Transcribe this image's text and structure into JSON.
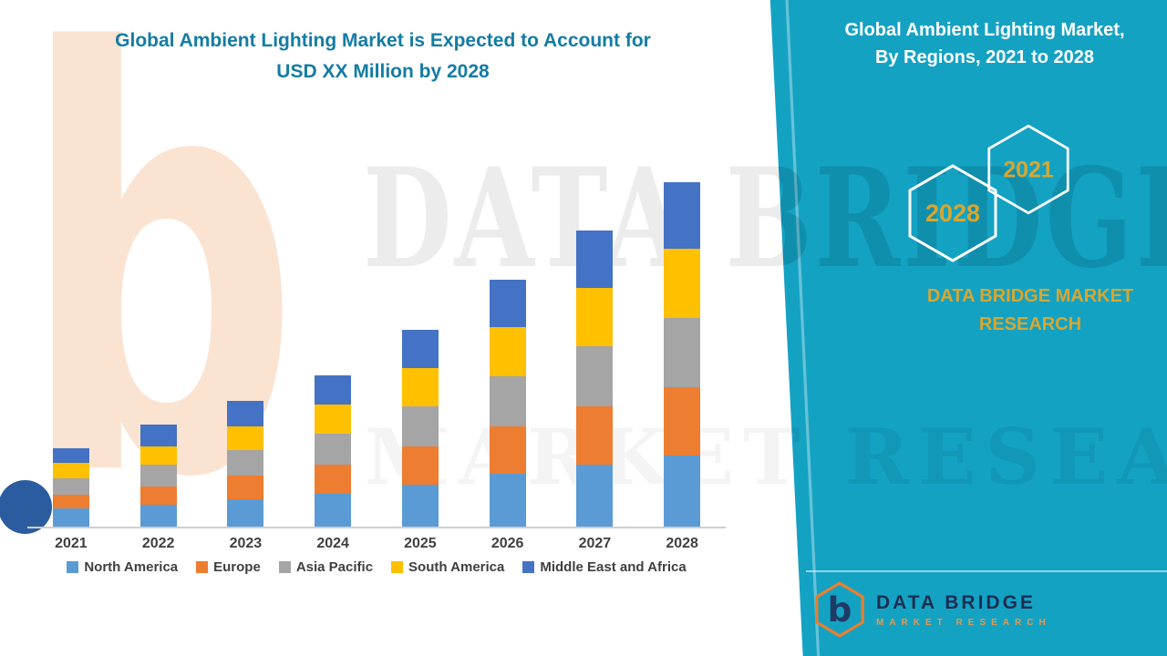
{
  "header": {
    "title_line1": "Global Ambient Lighting Market is Expected to Account for",
    "title_line2": "USD XX Million by 2028"
  },
  "side_panel": {
    "heading_line1": "Global Ambient Lighting Market,",
    "heading_line2": "By Regions, 2021 to 2028",
    "badge_2028": "2028",
    "badge_2021": "2021",
    "brand_line1": "DATA BRIDGE MARKET",
    "brand_line2": "RESEARCH",
    "panel_color": "#14A2C3",
    "gold_color": "#D9A62E",
    "title_color": "#147CA4"
  },
  "footer_logo": {
    "monogram": "b",
    "name": "DATA BRIDGE",
    "subtitle": "MARKET RESEARCH"
  },
  "watermark": {
    "b_glyph": "b",
    "line1": "DATA BRIDGE",
    "line2": "MARKET RESEARCH"
  },
  "chart_data": {
    "type": "bar",
    "stacked": true,
    "title": "Global Ambient Lighting Market is Expected to Account for USD XX Million by 2028",
    "xlabel": "",
    "ylabel": "",
    "y_axis_visible": false,
    "grid": false,
    "legend_position": "bottom",
    "categories": [
      "2021",
      "2022",
      "2023",
      "2024",
      "2025",
      "2026",
      "2027",
      "2028"
    ],
    "series": [
      {
        "name": "North America",
        "color": "#5B9BD5",
        "values": [
          20,
          24,
          30,
          36,
          46,
          58,
          68,
          78
        ]
      },
      {
        "name": "Europe",
        "color": "#ED7D31",
        "values": [
          15,
          20,
          26,
          32,
          42,
          52,
          64,
          75
        ]
      },
      {
        "name": "Asia Pacific",
        "color": "#A5A5A5",
        "values": [
          18,
          24,
          28,
          34,
          44,
          55,
          66,
          76
        ]
      },
      {
        "name": "South America",
        "color": "#FFC000",
        "values": [
          17,
          20,
          26,
          32,
          42,
          54,
          64,
          76
        ]
      },
      {
        "name": "Middle East and Africa",
        "color": "#4472C4",
        "values": [
          16,
          24,
          28,
          32,
          42,
          52,
          63,
          73
        ]
      }
    ],
    "totals": [
      86,
      112,
      138,
      166,
      216,
      271,
      325,
      378
    ],
    "units": "relative units; y-axis unlabeled in source (values shown as XX)"
  }
}
